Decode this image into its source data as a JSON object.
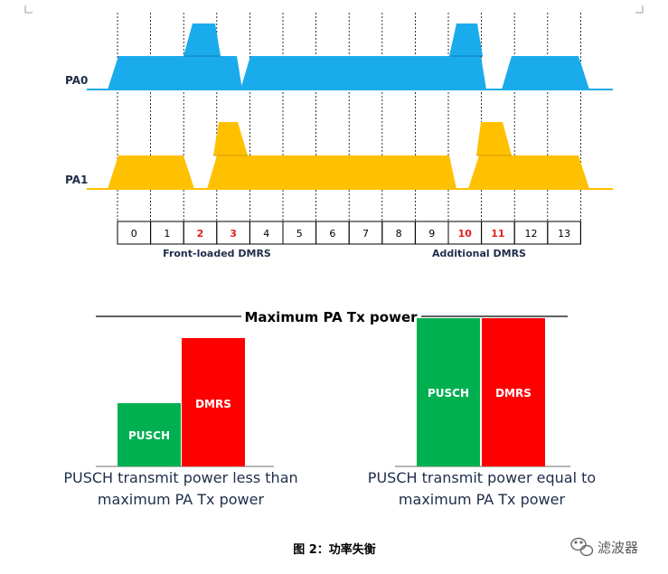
{
  "pa_rows": [
    {
      "label": "PA0",
      "color": "#1aabec"
    },
    {
      "label": "PA1",
      "color": "#ffc000"
    }
  ],
  "slots": [
    {
      "label": "0",
      "dmrs": false
    },
    {
      "label": "1",
      "dmrs": false
    },
    {
      "label": "2",
      "dmrs": true
    },
    {
      "label": "3",
      "dmrs": true
    },
    {
      "label": "4",
      "dmrs": false
    },
    {
      "label": "5",
      "dmrs": false
    },
    {
      "label": "6",
      "dmrs": false
    },
    {
      "label": "7",
      "dmrs": false
    },
    {
      "label": "8",
      "dmrs": false
    },
    {
      "label": "9",
      "dmrs": false
    },
    {
      "label": "10",
      "dmrs": true
    },
    {
      "label": "11",
      "dmrs": true
    },
    {
      "label": "12",
      "dmrs": false
    },
    {
      "label": "13",
      "dmrs": false
    }
  ],
  "front_loaded_label": "Front-loaded DMRS",
  "additional_label": "Additional DMRS",
  "max_power_label": "Maximum PA Tx power",
  "bars": {
    "pusch_label": "PUSCH",
    "dmrs_label": "DMRS",
    "pusch_color": "#00b050",
    "dmrs_color": "#ff0000"
  },
  "captions": {
    "left": [
      "PUSCH transmit power less than",
      "maximum PA Tx power"
    ],
    "right": [
      "PUSCH transmit power equal to",
      "maximum PA Tx power"
    ]
  },
  "figure_caption": "图 2：功率失衡",
  "brand": "滤波器"
}
